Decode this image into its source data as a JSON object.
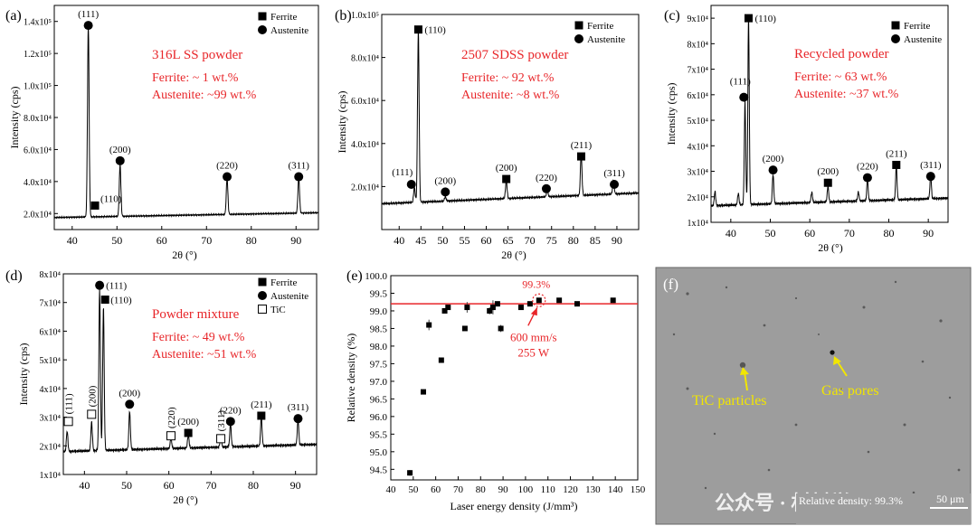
{
  "figure": {
    "watermark": "公众号 · 材料学网",
    "colors": {
      "red": "#e8262a",
      "black": "#000000",
      "yellow": "#f2e600",
      "sem_bg": "#9b9b9b"
    }
  },
  "chart_data": [
    {
      "id": "a",
      "type": "line",
      "panel_label": "(a)",
      "xlabel": "2θ (°)",
      "ylabel": "Intensity (cps)",
      "xlim": [
        36,
        95
      ],
      "ylim": [
        10000,
        150000
      ],
      "xticks": [
        40,
        50,
        60,
        70,
        80,
        90
      ],
      "yticks": [
        {
          "v": 20000,
          "l": "2.0x10⁴"
        },
        {
          "v": 40000,
          "l": "4.0x10⁴"
        },
        {
          "v": 60000,
          "l": "6.0x10⁴"
        },
        {
          "v": 80000,
          "l": "8.0x10⁴"
        },
        {
          "v": 100000,
          "l": "1.0x10⁵"
        },
        {
          "v": 120000,
          "l": "1.2x10⁵"
        },
        {
          "v": 140000,
          "l": "1.4x10⁵"
        }
      ],
      "baseline": 17500,
      "baseline_end": 20500,
      "peaks": [
        {
          "x": 43.6,
          "y": 137000
        },
        {
          "x": 50.7,
          "y": 50000
        },
        {
          "x": 74.6,
          "y": 40000
        },
        {
          "x": 90.6,
          "y": 40000
        }
      ],
      "markers": [
        {
          "kind": "austenite",
          "x": 43.6,
          "y": 137500,
          "label": "(111)"
        },
        {
          "kind": "ferrite",
          "x": 45.1,
          "y": 25000,
          "label": "(110)"
        },
        {
          "kind": "austenite",
          "x": 50.7,
          "y": 53000,
          "label": "(200)"
        },
        {
          "kind": "austenite",
          "x": 74.6,
          "y": 43000,
          "label": "(220)"
        },
        {
          "kind": "austenite",
          "x": 90.6,
          "y": 43000,
          "label": "(311)"
        }
      ],
      "legend": [
        "Ferrite",
        "Austenite"
      ],
      "annotation_title": "316L SS powder",
      "annotation_lines": [
        "Ferrite: ~ 1 wt.%",
        "Austenite: ~99 wt.%"
      ]
    },
    {
      "id": "b",
      "type": "line",
      "panel_label": "(b)",
      "xlabel": "2θ (°)",
      "ylabel": "Intensity (cps)",
      "xlim": [
        36,
        95
      ],
      "ylim": [
        0,
        100000
      ],
      "xticks": [
        40,
        45,
        50,
        55,
        60,
        65,
        70,
        75,
        80,
        85,
        90
      ],
      "yticks": [
        {
          "v": 20000,
          "l": "2.0x10⁴"
        },
        {
          "v": 40000,
          "l": "4.0x10⁴"
        },
        {
          "v": 60000,
          "l": "6.0x10⁴"
        },
        {
          "v": 80000,
          "l": "8.0x10⁴"
        },
        {
          "v": 100000,
          "l": "1.0x10⁵"
        }
      ],
      "baseline": 12000,
      "baseline_end": 17000,
      "peaks": [
        {
          "x": 43.5,
          "y": 19000
        },
        {
          "x": 44.4,
          "y": 92000
        },
        {
          "x": 50.6,
          "y": 14000
        },
        {
          "x": 64.6,
          "y": 20500
        },
        {
          "x": 74.0,
          "y": 15000
        },
        {
          "x": 81.8,
          "y": 31000
        },
        {
          "x": 89.2,
          "y": 18500
        }
      ],
      "markers": [
        {
          "kind": "austenite",
          "x": 42.8,
          "y": 21000,
          "label": "(111)"
        },
        {
          "kind": "ferrite",
          "x": 44.4,
          "y": 93000,
          "label": "(110)"
        },
        {
          "kind": "austenite",
          "x": 50.6,
          "y": 17500,
          "label": "(200)"
        },
        {
          "kind": "ferrite",
          "x": 64.6,
          "y": 23500,
          "label": "(200)"
        },
        {
          "kind": "austenite",
          "x": 73.8,
          "y": 19000,
          "label": "(220)"
        },
        {
          "kind": "ferrite",
          "x": 81.8,
          "y": 34000,
          "label": "(211)"
        },
        {
          "kind": "austenite",
          "x": 89.4,
          "y": 21000,
          "label": "(311)"
        }
      ],
      "legend": [
        "Ferrite",
        "Austenite"
      ],
      "annotation_title": "2507 SDSS powder",
      "annotation_lines": [
        "Ferrite: ~ 92 wt.%",
        "Austenite: ~8 wt.%"
      ]
    },
    {
      "id": "c",
      "type": "line",
      "panel_label": "(c)",
      "xlabel": "2θ (°)",
      "ylabel": "Intensity (cps)",
      "xlim": [
        35,
        95
      ],
      "ylim": [
        10000,
        95000
      ],
      "xticks": [
        40,
        50,
        60,
        70,
        80,
        90
      ],
      "yticks": [
        {
          "v": 10000,
          "l": "1x10⁴"
        },
        {
          "v": 20000,
          "l": "2x10⁴"
        },
        {
          "v": 30000,
          "l": "3x10⁴"
        },
        {
          "v": 40000,
          "l": "4x10⁴"
        },
        {
          "v": 50000,
          "l": "5x10⁴"
        },
        {
          "v": 60000,
          "l": "6x10⁴"
        },
        {
          "v": 70000,
          "l": "7x10⁴"
        },
        {
          "v": 80000,
          "l": "8x10⁴"
        },
        {
          "v": 90000,
          "l": "9x10⁴"
        }
      ],
      "baseline": 16500,
      "baseline_end": 19500,
      "peaks": [
        {
          "x": 36.0,
          "y": 22000
        },
        {
          "x": 41.9,
          "y": 21000
        },
        {
          "x": 43.6,
          "y": 57000
        },
        {
          "x": 44.5,
          "y": 89000
        },
        {
          "x": 50.7,
          "y": 28000
        },
        {
          "x": 60.5,
          "y": 20500
        },
        {
          "x": 64.6,
          "y": 23000
        },
        {
          "x": 72.3,
          "y": 20000
        },
        {
          "x": 74.6,
          "y": 24500
        },
        {
          "x": 81.9,
          "y": 30000
        },
        {
          "x": 90.6,
          "y": 25500
        }
      ],
      "markers": [
        {
          "kind": "austenite",
          "x": 43.3,
          "y": 59000,
          "label": "(111)"
        },
        {
          "kind": "ferrite",
          "x": 44.5,
          "y": 90000,
          "label": "(110)"
        },
        {
          "kind": "austenite",
          "x": 50.7,
          "y": 30500,
          "label": "(200)"
        },
        {
          "kind": "ferrite",
          "x": 64.6,
          "y": 25500,
          "label": "(200)"
        },
        {
          "kind": "austenite",
          "x": 74.6,
          "y": 27500,
          "label": "(220)"
        },
        {
          "kind": "ferrite",
          "x": 81.9,
          "y": 32500,
          "label": "(211)"
        },
        {
          "kind": "austenite",
          "x": 90.6,
          "y": 28000,
          "label": "(311)"
        }
      ],
      "legend": [
        "Ferrite",
        "Austenite"
      ],
      "annotation_title": "Recycled powder",
      "annotation_lines": [
        "Ferrite: ~ 63 wt.%",
        "Austenite: ~37 wt.%"
      ]
    },
    {
      "id": "d",
      "type": "line",
      "panel_label": "(d)",
      "xlabel": "2θ (°)",
      "ylabel": "Intensity (cps)",
      "xlim": [
        35,
        95
      ],
      "ylim": [
        10000,
        80000
      ],
      "xticks": [
        40,
        50,
        60,
        70,
        80,
        90
      ],
      "yticks": [
        {
          "v": 10000,
          "l": "1x10⁴"
        },
        {
          "v": 20000,
          "l": "2x10⁴"
        },
        {
          "v": 30000,
          "l": "3x10⁴"
        },
        {
          "v": 40000,
          "l": "4x10⁴"
        },
        {
          "v": 50000,
          "l": "5x10⁴"
        },
        {
          "v": 60000,
          "l": "6x10⁴"
        },
        {
          "v": 70000,
          "l": "7x10⁴"
        },
        {
          "v": 80000,
          "l": "8x10⁴"
        }
      ],
      "baseline": 18000,
      "baseline_end": 20500,
      "peaks": [
        {
          "x": 35.9,
          "y": 25000
        },
        {
          "x": 41.7,
          "y": 28000
        },
        {
          "x": 43.6,
          "y": 74000
        },
        {
          "x": 44.5,
          "y": 68000
        },
        {
          "x": 50.7,
          "y": 31500
        },
        {
          "x": 60.5,
          "y": 21500
        },
        {
          "x": 64.6,
          "y": 22500
        },
        {
          "x": 72.3,
          "y": 21500
        },
        {
          "x": 74.6,
          "y": 26000
        },
        {
          "x": 81.9,
          "y": 28000
        },
        {
          "x": 90.6,
          "y": 26500
        }
      ],
      "markers": [
        {
          "kind": "tic",
          "x": 36.2,
          "y": 28500,
          "label": "(111)",
          "rotate": true
        },
        {
          "kind": "tic",
          "x": 41.7,
          "y": 31000,
          "label": "(200)",
          "rotate": true
        },
        {
          "kind": "austenite",
          "x": 43.6,
          "y": 76000,
          "label": "(111)"
        },
        {
          "kind": "ferrite",
          "x": 44.9,
          "y": 71000,
          "label": "(110)"
        },
        {
          "kind": "austenite",
          "x": 50.7,
          "y": 34500,
          "label": "(200)"
        },
        {
          "kind": "tic",
          "x": 60.5,
          "y": 23500,
          "label": "(220)",
          "rotate": true
        },
        {
          "kind": "ferrite",
          "x": 64.6,
          "y": 24500,
          "label": "(200)"
        },
        {
          "kind": "tic",
          "x": 72.3,
          "y": 22500,
          "label": "(311)",
          "rotate": true
        },
        {
          "kind": "austenite",
          "x": 74.6,
          "y": 28500,
          "label": "(220)"
        },
        {
          "kind": "ferrite",
          "x": 81.9,
          "y": 30500,
          "label": "(211)"
        },
        {
          "kind": "austenite",
          "x": 90.6,
          "y": 29500,
          "label": "(311)"
        }
      ],
      "legend": [
        "Ferrite",
        "Austenite",
        "TiC"
      ],
      "annotation_title": "Powder mixture",
      "annotation_lines": [
        "Ferrite: ~ 49 wt.%",
        "Austenite: ~51 wt.%"
      ]
    },
    {
      "id": "e",
      "type": "scatter",
      "panel_label": "(e)",
      "xlabel": "Laser energy density (J/mm³)",
      "ylabel": "Relative density (%)",
      "xlim": [
        40,
        150
      ],
      "ylim": [
        94.2,
        100.0
      ],
      "xticks": [
        40,
        50,
        60,
        70,
        80,
        90,
        100,
        110,
        120,
        130,
        140,
        150
      ],
      "yticks": [
        94.5,
        95.0,
        95.5,
        96.0,
        96.5,
        97.0,
        97.5,
        98.0,
        98.5,
        99.0,
        99.5,
        100.0
      ],
      "ytick_decimals": 1,
      "hline": 99.2,
      "points": [
        {
          "x": 48.5,
          "y": 94.4,
          "err": 0.08
        },
        {
          "x": 54.5,
          "y": 96.7,
          "err": 0.06
        },
        {
          "x": 57.0,
          "y": 98.6,
          "err": 0.15
        },
        {
          "x": 62.5,
          "y": 97.6,
          "err": 0.05
        },
        {
          "x": 64.0,
          "y": 99.0,
          "err": 0.05
        },
        {
          "x": 65.5,
          "y": 99.1,
          "err": 0.05
        },
        {
          "x": 73.0,
          "y": 98.5,
          "err": 0.05
        },
        {
          "x": 74.0,
          "y": 99.1,
          "err": 0.15
        },
        {
          "x": 84.0,
          "y": 99.0,
          "err": 0.1
        },
        {
          "x": 85.5,
          "y": 99.1,
          "err": 0.2
        },
        {
          "x": 87.5,
          "y": 99.2,
          "err": 0.05
        },
        {
          "x": 89.0,
          "y": 98.5,
          "err": 0.1
        },
        {
          "x": 98.0,
          "y": 99.1,
          "err": 0.05
        },
        {
          "x": 102.0,
          "y": 99.2,
          "err": 0.05
        },
        {
          "x": 106.0,
          "y": 99.3,
          "err": 0.05
        },
        {
          "x": 115.0,
          "y": 99.3,
          "err": 0.05
        },
        {
          "x": 123.0,
          "y": 99.2,
          "err": 0.05
        },
        {
          "x": 139.0,
          "y": 99.3,
          "err": 0.05
        }
      ],
      "highlight": {
        "x": 106.0,
        "y": 99.3,
        "label": "99.3%"
      },
      "annotation_lines": [
        "600 mm/s",
        "255 W"
      ]
    }
  ],
  "panel_f": {
    "panel_label": "(f)",
    "label_tic": "TiC particles",
    "label_pores": "Gas pores",
    "caption": "Relative density: 99.3%",
    "scalebar": "50 μm"
  }
}
